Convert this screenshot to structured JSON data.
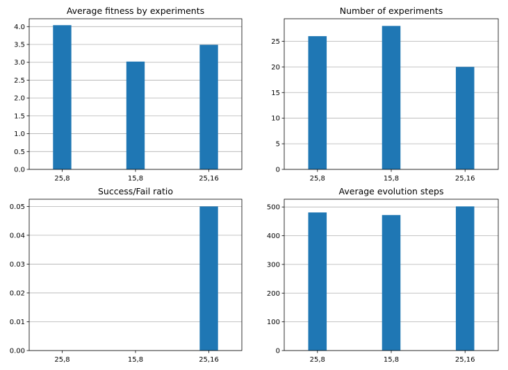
{
  "chart_data": [
    {
      "type": "bar",
      "title": "Average fitness by experiments",
      "categories": [
        "25,8",
        "15,8",
        "25,16"
      ],
      "values": [
        4.04,
        3.02,
        3.49
      ],
      "ylim": [
        0,
        4.22
      ],
      "yticks": [
        0.0,
        0.5,
        1.0,
        1.5,
        2.0,
        2.5,
        3.0,
        3.5,
        4.0
      ],
      "ytick_labels": [
        "0.0",
        "0.5",
        "1.0",
        "1.5",
        "2.0",
        "2.5",
        "3.0",
        "3.5",
        "4.0"
      ],
      "grid": "y",
      "color": "#1f77b4",
      "xlabel": "",
      "ylabel": ""
    },
    {
      "type": "bar",
      "title": "Number of experiments",
      "categories": [
        "25,8",
        "15,8",
        "25,16"
      ],
      "values": [
        26,
        28,
        20
      ],
      "ylim": [
        0,
        29.4
      ],
      "yticks": [
        0,
        5,
        10,
        15,
        20,
        25
      ],
      "ytick_labels": [
        "0",
        "5",
        "10",
        "15",
        "20",
        "25"
      ],
      "grid": "y",
      "color": "#1f77b4",
      "xlabel": "",
      "ylabel": ""
    },
    {
      "type": "bar",
      "title": "Success/Fail ratio",
      "categories": [
        "25,8",
        "15,8",
        "25,16"
      ],
      "values": [
        0,
        0,
        0.05
      ],
      "ylim": [
        0,
        0.0525
      ],
      "yticks": [
        0.0,
        0.01,
        0.02,
        0.03,
        0.04,
        0.05
      ],
      "ytick_labels": [
        "0.00",
        "0.01",
        "0.02",
        "0.03",
        "0.04",
        "0.05"
      ],
      "grid": "y",
      "color": "#1f77b4",
      "xlabel": "",
      "ylabel": ""
    },
    {
      "type": "bar",
      "title": "Average evolution steps",
      "categories": [
        "25,8",
        "15,8",
        "25,16"
      ],
      "values": [
        481,
        472,
        502
      ],
      "ylim": [
        0,
        527
      ],
      "yticks": [
        0,
        100,
        200,
        300,
        400,
        500
      ],
      "ytick_labels": [
        "0",
        "100",
        "200",
        "300",
        "400",
        "500"
      ],
      "grid": "y",
      "color": "#1f77b4",
      "xlabel": "",
      "ylabel": ""
    }
  ]
}
